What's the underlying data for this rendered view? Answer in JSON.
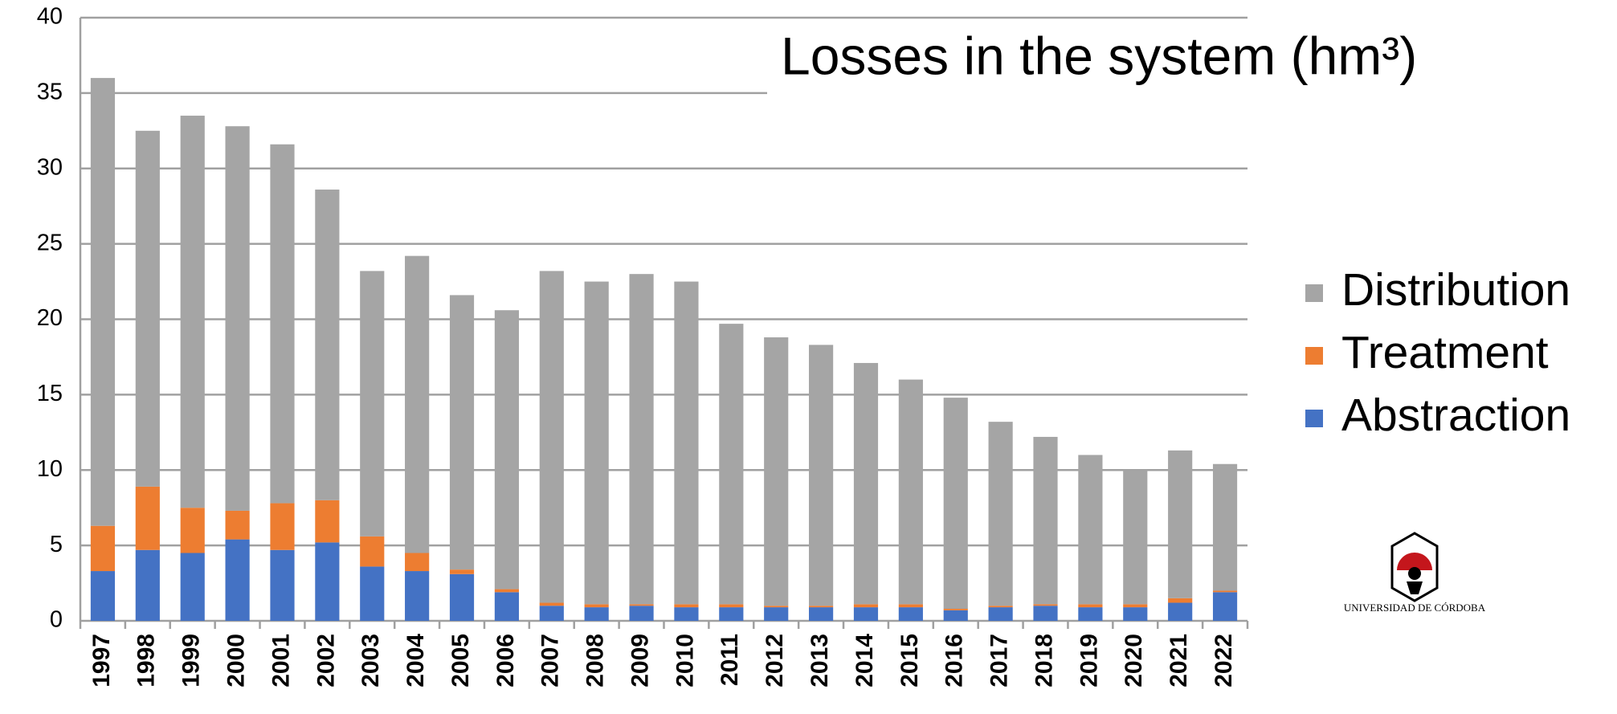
{
  "chart_data": {
    "type": "stacked_bar",
    "title": "Losses in the system (hm³)",
    "categories": [
      "1997",
      "1998",
      "1999",
      "2000",
      "2001",
      "2002",
      "2003",
      "2004",
      "2005",
      "2006",
      "2007",
      "2008",
      "2009",
      "2010",
      "2011",
      "2012",
      "2013",
      "2014",
      "2015",
      "2016",
      "2017",
      "2018",
      "2019",
      "2020",
      "2021",
      "2022"
    ],
    "series": [
      {
        "name": "Abstraction",
        "color": "#4472c4",
        "values": [
          3.3,
          4.7,
          4.5,
          5.4,
          4.7,
          5.2,
          3.6,
          3.3,
          3.1,
          1.9,
          1.0,
          0.9,
          1.0,
          0.9,
          0.9,
          0.9,
          0.9,
          0.9,
          0.9,
          0.7,
          0.9,
          1.0,
          0.9,
          0.9,
          1.2,
          1.9
        ]
      },
      {
        "name": "Treatment",
        "color": "#ed7d31",
        "values": [
          3.0,
          4.2,
          3.0,
          1.9,
          3.1,
          2.8,
          2.0,
          1.2,
          0.3,
          0.2,
          0.2,
          0.2,
          0.1,
          0.2,
          0.2,
          0.1,
          0.1,
          0.2,
          0.2,
          0.1,
          0.1,
          0.1,
          0.2,
          0.2,
          0.3,
          0.1
        ]
      },
      {
        "name": "Distribution",
        "color": "#a5a5a5",
        "values": [
          29.7,
          23.6,
          26.0,
          25.5,
          23.8,
          20.6,
          17.6,
          19.7,
          18.2,
          18.5,
          22.0,
          21.4,
          21.9,
          21.4,
          18.6,
          17.8,
          17.3,
          16.0,
          14.9,
          14.0,
          12.2,
          11.1,
          9.9,
          8.9,
          9.8,
          8.4
        ]
      }
    ],
    "ylim": [
      0,
      40
    ],
    "yticks": [
      0,
      5,
      10,
      15,
      20,
      25,
      30,
      35,
      40
    ],
    "grid": true,
    "legend": "right",
    "logo_text": "UNIVERSIDAD DE CÓRDOBA"
  }
}
